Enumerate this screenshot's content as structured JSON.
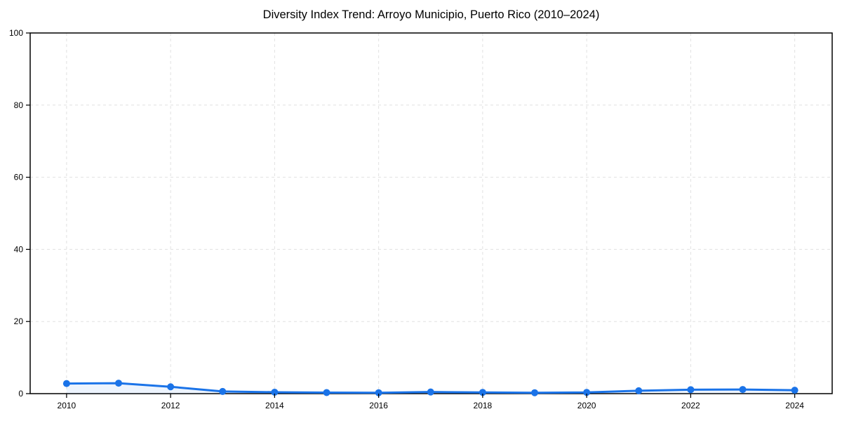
{
  "chart_data": {
    "type": "area",
    "title": "Diversity Index Trend: Arroyo Municipio, Puerto Rico (2010–2024)",
    "xlabel": "",
    "ylabel": "",
    "x": [
      2010,
      2011,
      2012,
      2013,
      2014,
      2015,
      2016,
      2017,
      2018,
      2019,
      2020,
      2021,
      2022,
      2023,
      2024
    ],
    "values": [
      2.8,
      2.9,
      1.9,
      0.6,
      0.4,
      0.3,
      0.25,
      0.45,
      0.35,
      0.25,
      0.35,
      0.8,
      1.1,
      1.15,
      0.95
    ],
    "xticks": [
      2010,
      2012,
      2014,
      2016,
      2018,
      2020,
      2022,
      2024
    ],
    "yticks": [
      0,
      20,
      40,
      60,
      80,
      100
    ],
    "xlim": [
      2009.3,
      2024.72
    ],
    "ylim": [
      0,
      100
    ],
    "grid": true,
    "legend": "none",
    "colors": {
      "line": "#1a73e8",
      "marker": "#1a73e8",
      "area_fill": "rgba(26,115,232,0.08)",
      "gridline": "#e1e1e1",
      "spine": "#000000",
      "tick_label": "#000000",
      "background": "#ffffff"
    }
  }
}
